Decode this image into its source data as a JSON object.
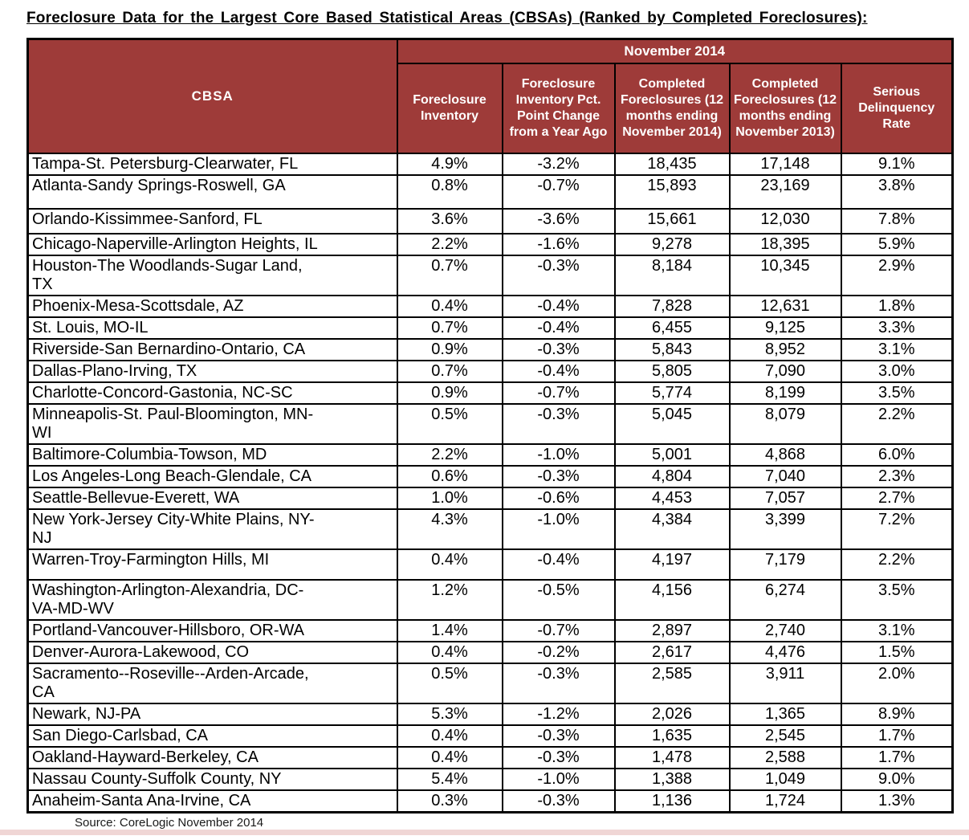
{
  "chart_data": {
    "type": "table",
    "title": "Foreclosure Data for the Largest Core Based Statistical Areas (CBSAs) (Ranked by Completed Foreclosures):",
    "group_header": "November 2014",
    "columns": [
      "CBSA",
      "Foreclosure Inventory",
      "Foreclosure Inventory Pct. Point Change from a Year Ago",
      "Completed Foreclosures (12 months ending November 2014)",
      "Completed Foreclosures (12 months ending November 2013)",
      "Serious Delinquency Rate"
    ],
    "rows": [
      [
        "Tampa-St. Petersburg-Clearwater, FL",
        "4.9%",
        "-3.2%",
        "18,435",
        "17,148",
        "9.1%"
      ],
      [
        "Atlanta-Sandy Springs-Roswell, GA",
        "0.8%",
        "-0.7%",
        "15,893",
        "23,169",
        "3.8%"
      ],
      [
        "Orlando-Kissimmee-Sanford, FL",
        "3.6%",
        "-3.6%",
        "15,661",
        "12,030",
        "7.8%"
      ],
      [
        "Chicago-Naperville-Arlington Heights, IL",
        "2.2%",
        "-1.6%",
        "9,278",
        "18,395",
        "5.9%"
      ],
      [
        "Houston-The Woodlands-Sugar Land,\nTX",
        "0.7%",
        "-0.3%",
        "8,184",
        "10,345",
        "2.9%"
      ],
      [
        "Phoenix-Mesa-Scottsdale, AZ",
        "0.4%",
        "-0.4%",
        "7,828",
        "12,631",
        "1.8%"
      ],
      [
        "St. Louis, MO-IL",
        "0.7%",
        "-0.4%",
        "6,455",
        "9,125",
        "3.3%"
      ],
      [
        "Riverside-San Bernardino-Ontario, CA",
        "0.9%",
        "-0.3%",
        "5,843",
        "8,952",
        "3.1%"
      ],
      [
        "Dallas-Plano-Irving, TX",
        "0.7%",
        "-0.4%",
        "5,805",
        "7,090",
        "3.0%"
      ],
      [
        "Charlotte-Concord-Gastonia, NC-SC",
        "0.9%",
        "-0.7%",
        "5,774",
        "8,199",
        "3.5%"
      ],
      [
        "Minneapolis-St. Paul-Bloomington, MN-\nWI",
        "0.5%",
        "-0.3%",
        "5,045",
        "8,079",
        "2.2%"
      ],
      [
        "Baltimore-Columbia-Towson, MD",
        "2.2%",
        "-1.0%",
        "5,001",
        "4,868",
        "6.0%"
      ],
      [
        "Los Angeles-Long Beach-Glendale, CA",
        "0.6%",
        "-0.3%",
        "4,804",
        "7,040",
        "2.3%"
      ],
      [
        "Seattle-Bellevue-Everett, WA",
        "1.0%",
        "-0.6%",
        "4,453",
        "7,057",
        "2.7%"
      ],
      [
        "New York-Jersey City-White Plains, NY-\nNJ",
        "4.3%",
        "-1.0%",
        "4,384",
        "3,399",
        "7.2%"
      ],
      [
        "Warren-Troy-Farmington Hills, MI",
        "0.4%",
        "-0.4%",
        "4,197",
        "7,179",
        "2.2%"
      ],
      [
        "Washington-Arlington-Alexandria, DC-\nVA-MD-WV",
        "1.2%",
        "-0.5%",
        "4,156",
        "6,274",
        "3.5%"
      ],
      [
        "Portland-Vancouver-Hillsboro, OR-WA",
        "1.4%",
        "-0.7%",
        "2,897",
        "2,740",
        "3.1%"
      ],
      [
        "Denver-Aurora-Lakewood, CO",
        "0.4%",
        "-0.2%",
        "2,617",
        "4,476",
        "1.5%"
      ],
      [
        "Sacramento--Roseville--Arden-Arcade,\nCA",
        "0.5%",
        "-0.3%",
        "2,585",
        "3,911",
        "2.0%"
      ],
      [
        "Newark, NJ-PA",
        "5.3%",
        "-1.2%",
        "2,026",
        "1,365",
        "8.9%"
      ],
      [
        "San Diego-Carlsbad, CA",
        "0.4%",
        "-0.3%",
        "1,635",
        "2,545",
        "1.7%"
      ],
      [
        "Oakland-Hayward-Berkeley, CA",
        "0.4%",
        "-0.3%",
        "1,478",
        "2,588",
        "1.7%"
      ],
      [
        "Nassau County-Suffolk County, NY",
        "5.4%",
        "-1.0%",
        "1,388",
        "1,049",
        "9.0%"
      ],
      [
        "Anaheim-Santa Ana-Irvine, CA",
        "0.3%",
        "-0.3%",
        "1,136",
        "1,724",
        "1.3%"
      ]
    ],
    "source": "Source: CoreLogic November 2014",
    "layout": "header row grouped under November 2014 spanning 5 value columns; CBSA column spans both header rows; grid on"
  },
  "colors": {
    "header_bg": "#9E3B39",
    "header_text": "#FFFFFF",
    "border": "#000000",
    "body_text": "#000000"
  }
}
